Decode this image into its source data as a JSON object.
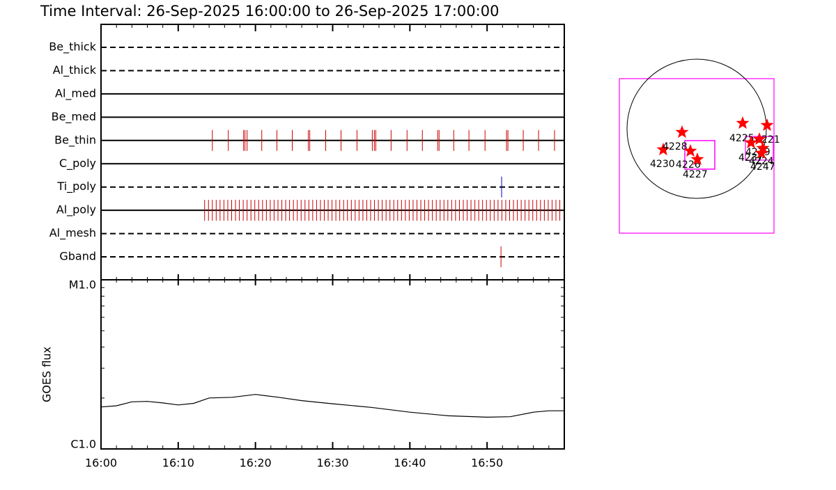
{
  "title": "Time Interval: 26-Sep-2025 16:00:00 to 26-Sep-2025 17:00:00",
  "chart_data": [
    {
      "type": "timeline",
      "series": [
        {
          "name": "Be_thick",
          "style": "dashed",
          "color": "#cc0000",
          "values": []
        },
        {
          "name": "Al_thick",
          "style": "dashed",
          "color": "#cc0000",
          "values": []
        },
        {
          "name": "Al_med",
          "style": "solid",
          "color": "#cc0000",
          "values": []
        },
        {
          "name": "Be_med",
          "style": "solid",
          "color": "#cc0000",
          "values": []
        },
        {
          "name": "Be_thin",
          "style": "solid",
          "color": "#cc0000",
          "values": [
            "16:14:25",
            "16:16:29",
            "16:18:28",
            "16:18:39",
            "16:18:55",
            "16:20:49",
            "16:22:47",
            "16:24:46",
            "16:26:51",
            "16:27:02",
            "16:29:06",
            "16:31:05",
            "16:33:09",
            "16:35:08",
            "16:35:24",
            "16:35:35",
            "16:37:34",
            "16:39:38",
            "16:41:37",
            "16:43:36",
            "16:43:47",
            "16:45:41",
            "16:47:39",
            "16:49:44",
            "16:52:31",
            "16:52:42",
            "16:54:41",
            "16:56:40",
            "16:58:44"
          ]
        },
        {
          "name": "C_poly",
          "style": "solid",
          "color": "#cc0000",
          "values": []
        },
        {
          "name": "Ti_poly",
          "style": "dashed",
          "color": "#0000cc",
          "values": [
            "16:51:53"
          ]
        },
        {
          "name": "Al_poly",
          "style": "solid",
          "color": "#cc0000",
          "values": [
            "16:13:25",
            "16:13:55",
            "16:14:25",
            "16:14:55",
            "16:15:25",
            "16:15:55",
            "16:16:25",
            "16:16:55",
            "16:17:25",
            "16:17:55",
            "16:18:25",
            "16:18:55",
            "16:19:25",
            "16:19:55",
            "16:20:25",
            "16:20:55",
            "16:21:25",
            "16:21:55",
            "16:22:25",
            "16:22:55",
            "16:23:25",
            "16:23:55",
            "16:24:25",
            "16:24:55",
            "16:25:25",
            "16:25:55",
            "16:26:25",
            "16:26:55",
            "16:27:25",
            "16:27:55",
            "16:28:25",
            "16:28:55",
            "16:29:25",
            "16:29:55",
            "16:30:25",
            "16:30:55",
            "16:31:25",
            "16:31:55",
            "16:32:25",
            "16:32:55",
            "16:33:25",
            "16:33:55",
            "16:34:25",
            "16:34:55",
            "16:35:25",
            "16:35:55",
            "16:36:25",
            "16:36:55",
            "16:37:25",
            "16:37:55",
            "16:38:25",
            "16:38:55",
            "16:39:25",
            "16:39:55",
            "16:40:25",
            "16:40:55",
            "16:41:25",
            "16:41:55",
            "16:42:25",
            "16:42:55",
            "16:43:25",
            "16:43:55",
            "16:44:25",
            "16:44:55",
            "16:45:25",
            "16:45:55",
            "16:46:25",
            "16:46:55",
            "16:47:25",
            "16:47:55",
            "16:48:25",
            "16:48:55",
            "16:49:25",
            "16:49:55",
            "16:50:25",
            "16:50:55",
            "16:51:25",
            "16:51:55",
            "16:52:25",
            "16:52:55",
            "16:53:25",
            "16:53:55",
            "16:54:25",
            "16:54:55",
            "16:55:25",
            "16:55:55",
            "16:56:25",
            "16:56:55",
            "16:57:25",
            "16:57:55",
            "16:58:25",
            "16:58:55",
            "16:59:25"
          ]
        },
        {
          "name": "Al_mesh",
          "style": "dashed",
          "color": "#cc0000",
          "values": []
        },
        {
          "name": "Gband",
          "style": "dashed",
          "color": "#cc0000",
          "values": [
            "16:51:48"
          ]
        }
      ]
    },
    {
      "type": "line",
      "ylabel": "GOES flux",
      "log": true,
      "color": "#000000",
      "x": [
        "16:00",
        "16:02",
        "16:04",
        "16:06",
        "16:08",
        "16:10",
        "16:12",
        "16:14",
        "16:17",
        "16:20",
        "16:23",
        "16:26",
        "16:30",
        "16:35",
        "16:40",
        "16:45",
        "16:50",
        "16:53",
        "16:56",
        "16:58",
        "17:00"
      ],
      "values": [
        1.77e-06,
        1.8e-06,
        1.9e-06,
        1.91e-06,
        1.87e-06,
        1.82e-06,
        1.86e-06,
        2e-06,
        2.02e-06,
        2.1e-06,
        2.02e-06,
        1.93e-06,
        1.85e-06,
        1.76e-06,
        1.65e-06,
        1.57e-06,
        1.54e-06,
        1.55e-06,
        1.65e-06,
        1.68e-06,
        1.68e-06
      ],
      "xlim": [
        "16:00",
        "17:00"
      ],
      "xticks": [
        "16:00",
        "16:10",
        "16:20",
        "16:30",
        "16:40",
        "16:50"
      ],
      "xminor": [
        "16:02",
        "16:04",
        "16:06",
        "16:08",
        "16:12",
        "16:14",
        "16:16",
        "16:18",
        "16:22",
        "16:24",
        "16:26",
        "16:28",
        "16:32",
        "16:34",
        "16:36",
        "16:38",
        "16:42",
        "16:44",
        "16:46",
        "16:48",
        "16:52",
        "16:54",
        "16:56",
        "16:58"
      ],
      "ylim": [
        1e-06,
        1e-05
      ],
      "yticks": [
        {
          "value": 1e-06,
          "label": "C1.0"
        },
        {
          "value": 1e-05,
          "label": "M1.0"
        }
      ],
      "yminor": [
        2e-06,
        3e-06,
        4e-06,
        5e-06,
        6e-06,
        7e-06,
        8e-06,
        9e-06
      ]
    },
    {
      "type": "map",
      "star_color": "#ff0000",
      "box_color": "#ff00ff",
      "regions": [
        "4230",
        "4228",
        "4226",
        "4227",
        "4225",
        "4221",
        "4229",
        "4237",
        "4224",
        "4247"
      ]
    }
  ]
}
